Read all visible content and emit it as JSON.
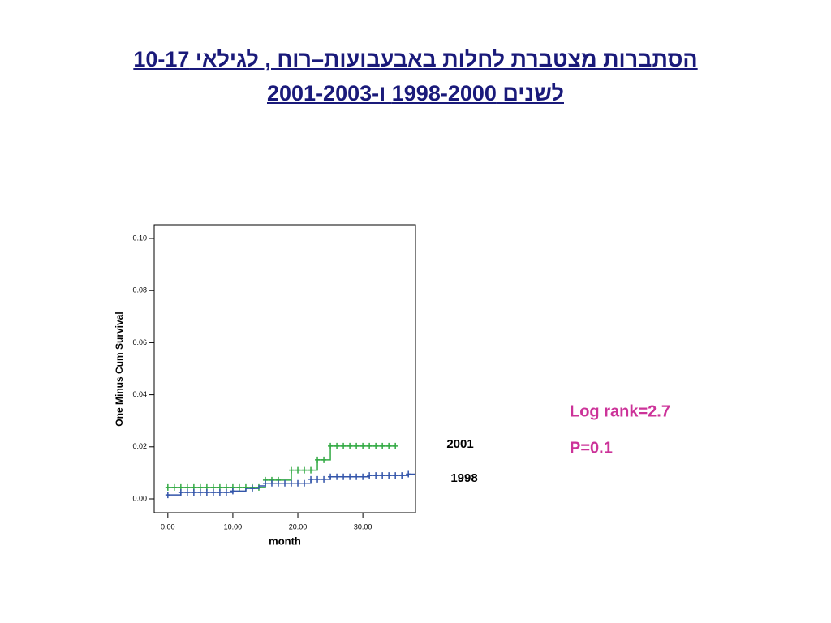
{
  "chart_data": {
    "type": "line",
    "step": "post",
    "title": "הסתברות מצטברת לחלות באבעבועות–רוח , לגילאי 10-17",
    "subtitle": "לשנים 1998-2000 ו-2001-2003",
    "y_label": "One Minus Cum Survival",
    "x_label": "month",
    "xlim": [
      -2.1,
      38.1
    ],
    "ylim": [
      -0.0053,
      0.1053
    ],
    "xticks": [
      {
        "value": 0,
        "label": "0.00"
      },
      {
        "value": 10,
        "label": "10.00"
      },
      {
        "value": 20,
        "label": "20.00"
      },
      {
        "value": 30,
        "label": "30.00"
      }
    ],
    "yticks": [
      {
        "value": 0,
        "label": "0.00"
      },
      {
        "value": 0.02,
        "label": "0.02"
      },
      {
        "value": 0.04,
        "label": "0.04"
      },
      {
        "value": 0.06,
        "label": "0.06"
      },
      {
        "value": 0.08,
        "label": "0.08"
      },
      {
        "value": 0.1,
        "label": "0.10"
      }
    ],
    "series": [
      {
        "name": "2001",
        "color": "#33aa44",
        "x": [
          0,
          15,
          19,
          23,
          25,
          35
        ],
        "y": [
          0.0044,
          0.0072,
          0.011,
          0.015,
          0.0203,
          0.0203
        ],
        "censored": [
          0,
          1,
          2,
          3,
          4,
          5,
          6,
          7,
          8,
          9,
          10,
          11,
          12,
          13,
          14,
          15,
          16,
          17,
          19,
          20,
          21,
          22,
          23,
          24,
          25,
          26,
          27,
          28,
          29,
          30,
          31,
          32,
          33,
          34,
          35
        ]
      },
      {
        "name": "1998",
        "color": "#3355aa",
        "x": [
          0,
          2,
          10,
          12,
          14,
          15,
          22,
          25,
          31,
          37,
          38
        ],
        "y": [
          0.0015,
          0.0025,
          0.003,
          0.004,
          0.005,
          0.006,
          0.0075,
          0.0085,
          0.009,
          0.0095,
          0.0095
        ],
        "censored": [
          0,
          2,
          3,
          4,
          5,
          6,
          7,
          8,
          9,
          10,
          13,
          15,
          16,
          17,
          18,
          19,
          20,
          21,
          22,
          23,
          24,
          25,
          26,
          27,
          28,
          29,
          30,
          31,
          32,
          33,
          34,
          35,
          36,
          37
        ]
      }
    ],
    "annotations": [
      "Log rank=2.7",
      "P=0.1"
    ]
  }
}
